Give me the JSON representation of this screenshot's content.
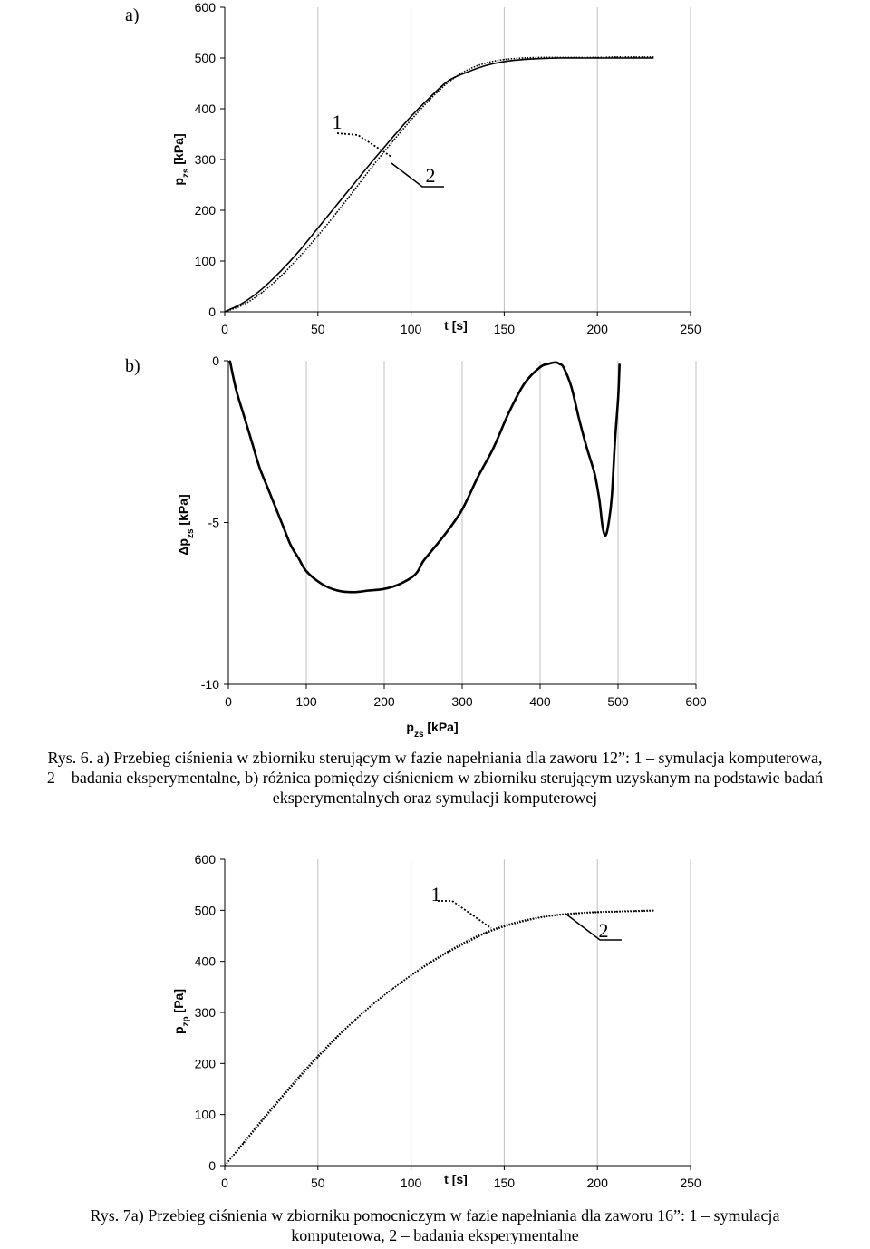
{
  "panel_a_label": "a)",
  "panel_b_label": "b)",
  "caption6": {
    "line1": "Rys. 6. a) Przebieg ciśnienia w zbiorniku sterującym w fazie napełniania dla zaworu 12”: 1 – symulacja komputerowa,",
    "line2": "2 – badania eksperymentalne, b) różnica pomiędzy ciśnieniem w zbiorniku sterującym uzyskanym na podstawie badań",
    "line3": "eksperymentalnych oraz symulacji komputerowej"
  },
  "caption7": {
    "line1": "Rys. 7a) Przebieg ciśnienia w zbiorniku pomocniczym w fazie napełniania dla zaworu 16”: 1 – symulacja",
    "line2": "komputerowa, 2 – badania eksperymentalne"
  },
  "colors": {
    "axis": "#000000",
    "grid": "#c0c0c0",
    "series": "#000000"
  },
  "chart_data": [
    {
      "type": "line",
      "xlabel": "t [s]",
      "ylabel_main": "p",
      "ylabel_sub": "zs",
      "ylabel_unit": " [kPa]",
      "xlim": [
        0,
        250
      ],
      "ylim": [
        0,
        600
      ],
      "xticks": [
        0,
        50,
        100,
        150,
        200,
        250
      ],
      "yticks": [
        0,
        100,
        200,
        300,
        400,
        500,
        600
      ],
      "grid": "vertical",
      "callout_1": "1",
      "callout_2": "2",
      "series": [
        {
          "name": "1",
          "style": "solid",
          "x": [
            0,
            10,
            20,
            30,
            40,
            50,
            60,
            70,
            80,
            90,
            100,
            110,
            120,
            130,
            140,
            150,
            160,
            170,
            180,
            190,
            200,
            210,
            220,
            230
          ],
          "y": [
            0,
            18,
            45,
            80,
            120,
            165,
            210,
            255,
            300,
            343,
            385,
            422,
            455,
            472,
            485,
            493,
            497,
            499,
            500,
            500,
            500,
            500,
            500,
            500
          ]
        },
        {
          "name": "2",
          "style": "dotted",
          "x": [
            0,
            10,
            20,
            30,
            40,
            50,
            60,
            70,
            80,
            90,
            100,
            110,
            120,
            130,
            140,
            150,
            160,
            170,
            180,
            190,
            200,
            210,
            220,
            230
          ],
          "y": [
            0,
            14,
            38,
            70,
            108,
            150,
            195,
            242,
            290,
            335,
            378,
            418,
            452,
            476,
            490,
            497,
            500,
            501,
            501,
            501,
            501,
            502,
            502,
            502
          ]
        }
      ]
    },
    {
      "type": "line",
      "xlabel_main": "p",
      "xlabel_sub": "zs",
      "xlabel_unit": " [kPa]",
      "ylabel_main": "Δp",
      "ylabel_sub": "zs",
      "ylabel_unit": " [kPa]",
      "xlim": [
        0,
        600
      ],
      "ylim": [
        -10,
        0
      ],
      "xticks": [
        0,
        100,
        200,
        300,
        400,
        500,
        600
      ],
      "yticks": [
        0,
        -5,
        -10
      ],
      "grid": "vertical",
      "series": [
        {
          "name": "",
          "style": "solid",
          "x": [
            2,
            10,
            20,
            30,
            40,
            50,
            60,
            70,
            80,
            90,
            100,
            120,
            140,
            160,
            180,
            200,
            220,
            240,
            250,
            260,
            280,
            300,
            320,
            340,
            360,
            380,
            400,
            410,
            420,
            425,
            430,
            440,
            450,
            460,
            470,
            476,
            480,
            484,
            488,
            492,
            496,
            500,
            502
          ],
          "y": [
            0,
            -0.9,
            -1.7,
            -2.5,
            -3.3,
            -3.9,
            -4.5,
            -5.1,
            -5.7,
            -6.1,
            -6.5,
            -6.9,
            -7.1,
            -7.15,
            -7.1,
            -7.05,
            -6.9,
            -6.6,
            -6.2,
            -5.9,
            -5.3,
            -4.6,
            -3.6,
            -2.7,
            -1.6,
            -0.7,
            -0.2,
            -0.1,
            -0.05,
            -0.1,
            -0.2,
            -0.8,
            -1.8,
            -2.7,
            -3.5,
            -4.3,
            -5.1,
            -5.4,
            -5.0,
            -4.2,
            -2.5,
            -1.2,
            -0.1
          ]
        }
      ]
    },
    {
      "type": "line",
      "xlabel": "t [s]",
      "ylabel_main": "p",
      "ylabel_sub": "zp",
      "ylabel_unit": " [Pa]",
      "xlim": [
        0,
        250
      ],
      "ylim": [
        0,
        600
      ],
      "xticks": [
        0,
        50,
        100,
        150,
        200,
        250
      ],
      "yticks": [
        0,
        100,
        200,
        300,
        400,
        500,
        600
      ],
      "grid": "vertical",
      "callout_1": "1",
      "callout_2": "2",
      "series": [
        {
          "name": "1",
          "style": "dotted",
          "x": [
            0,
            10,
            20,
            30,
            40,
            50,
            60,
            70,
            80,
            90,
            100,
            110,
            120,
            130,
            140,
            150,
            160,
            170,
            180,
            190,
            200,
            210,
            220,
            230
          ],
          "y": [
            0,
            45,
            90,
            133,
            175,
            215,
            252,
            286,
            318,
            346,
            372,
            396,
            418,
            437,
            455,
            468,
            478,
            486,
            491,
            494,
            496,
            497,
            498,
            499
          ]
        },
        {
          "name": "2",
          "style": "dotted",
          "x": [
            0,
            10,
            20,
            30,
            40,
            50,
            60,
            70,
            80,
            90,
            100,
            110,
            120,
            130,
            140,
            150,
            160,
            170,
            180,
            190,
            200,
            210,
            220,
            230
          ],
          "y": [
            0,
            43,
            87,
            130,
            172,
            212,
            250,
            285,
            317,
            346,
            373,
            398,
            420,
            440,
            457,
            470,
            480,
            487,
            492,
            495,
            497,
            498,
            499,
            500
          ]
        }
      ]
    }
  ]
}
